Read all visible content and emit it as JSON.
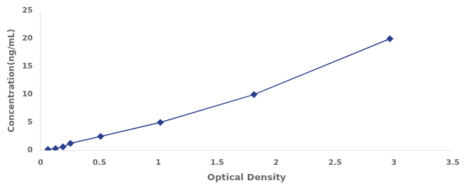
{
  "chart_data": {
    "type": "line",
    "x": [
      0.063,
      0.127,
      0.191,
      0.254,
      0.51,
      1.017,
      1.812,
      2.966
    ],
    "values": [
      0.156,
      0.312,
      0.625,
      1.25,
      2.5,
      5.0,
      10.0,
      20.0
    ],
    "xlabel": "Optical Density",
    "ylabel": "Concentration(ng/mL)",
    "xlim": [
      0,
      3.5
    ],
    "ylim": [
      0,
      25
    ],
    "xticks": [
      0,
      0.5,
      1,
      1.5,
      2,
      2.5,
      3,
      3.5
    ],
    "yticks": [
      0,
      5,
      10,
      15,
      20,
      25
    ],
    "color": "#2B3F8C",
    "marker": "diamond",
    "grid": false
  }
}
